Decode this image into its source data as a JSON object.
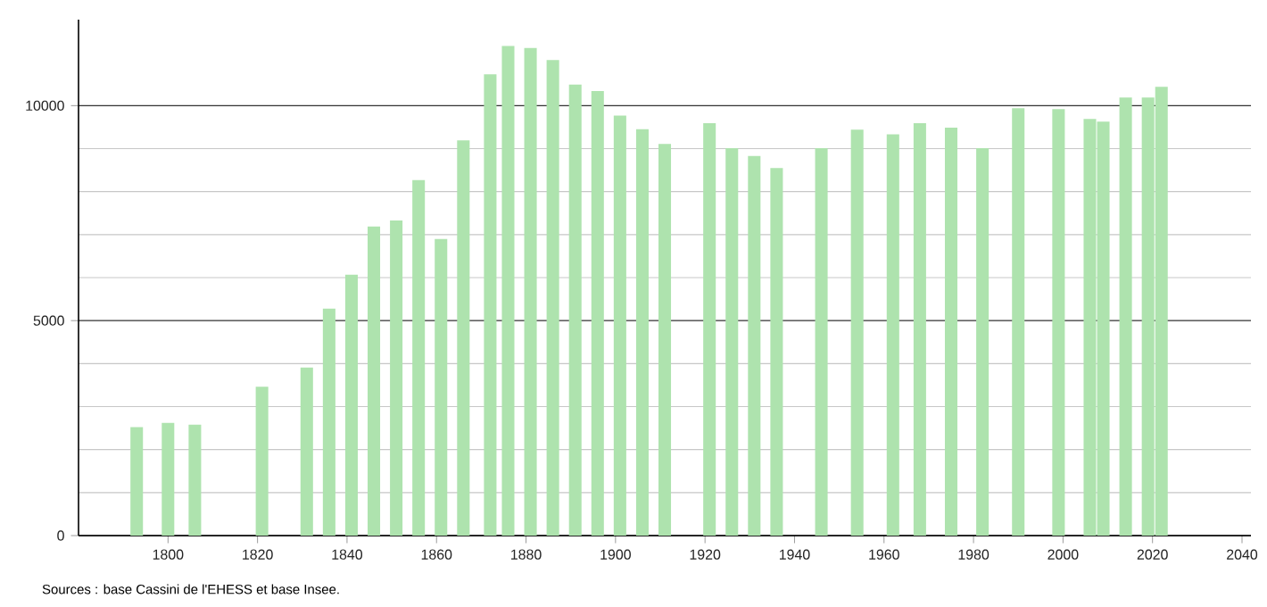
{
  "chart_data": {
    "type": "bar",
    "x": [
      1793,
      1800,
      1806,
      1821,
      1831,
      1836,
      1841,
      1846,
      1851,
      1856,
      1861,
      1866,
      1872,
      1876,
      1881,
      1886,
      1891,
      1896,
      1901,
      1906,
      1911,
      1921,
      1926,
      1931,
      1936,
      1946,
      1954,
      1962,
      1968,
      1975,
      1982,
      1990,
      1999,
      2006,
      2009,
      2014,
      2019,
      2022
    ],
    "values": [
      2520,
      2620,
      2580,
      3460,
      3910,
      5280,
      6070,
      7190,
      7330,
      8270,
      6900,
      9190,
      10730,
      11390,
      11340,
      11060,
      10490,
      10340,
      9770,
      9450,
      9110,
      9590,
      9010,
      8830,
      8550,
      9010,
      9440,
      9330,
      9590,
      9490,
      9010,
      9940,
      9920,
      9690,
      9630,
      10190,
      10190,
      10440
    ],
    "color": "#aee3ae",
    "xlim": [
      1780,
      2042
    ],
    "xticks": [
      1800,
      1820,
      1840,
      1860,
      1880,
      1900,
      1920,
      1940,
      1960,
      1980,
      2000,
      2020,
      2040
    ],
    "ylim": [
      0,
      12000
    ],
    "yticks": [
      0,
      5000,
      10000
    ],
    "grid": "y",
    "annotations": [
      "Sources : base Cassini de l'EHESS et base Insee."
    ]
  }
}
